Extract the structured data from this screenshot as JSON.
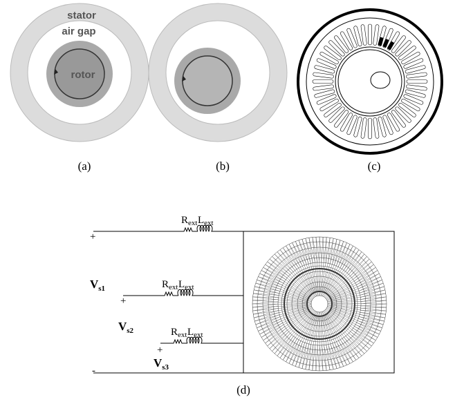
{
  "panels": {
    "a": {
      "stator": "stator",
      "air_gap": "air gap",
      "rotor": "rotor",
      "caption": "(a)"
    },
    "b": {
      "caption": "(b)"
    },
    "c": {
      "caption": "(c)"
    },
    "d": {
      "caption": "(d)",
      "resistors": [
        {
          "base": "R",
          "sub": "ext"
        },
        {
          "base": "R",
          "sub": "ext"
        },
        {
          "base": "R",
          "sub": "ext"
        }
      ],
      "inductors": [
        {
          "base": "L",
          "sub": "ext"
        },
        {
          "base": "L",
          "sub": "ext"
        },
        {
          "base": "L",
          "sub": "ext"
        }
      ],
      "sources": [
        {
          "base": "V",
          "sub": "s1"
        },
        {
          "base": "V",
          "sub": "s2"
        },
        {
          "base": "V",
          "sub": "s3"
        }
      ],
      "plus_signs": [
        "+",
        "+",
        "+"
      ],
      "minus_sign": "-"
    }
  }
}
